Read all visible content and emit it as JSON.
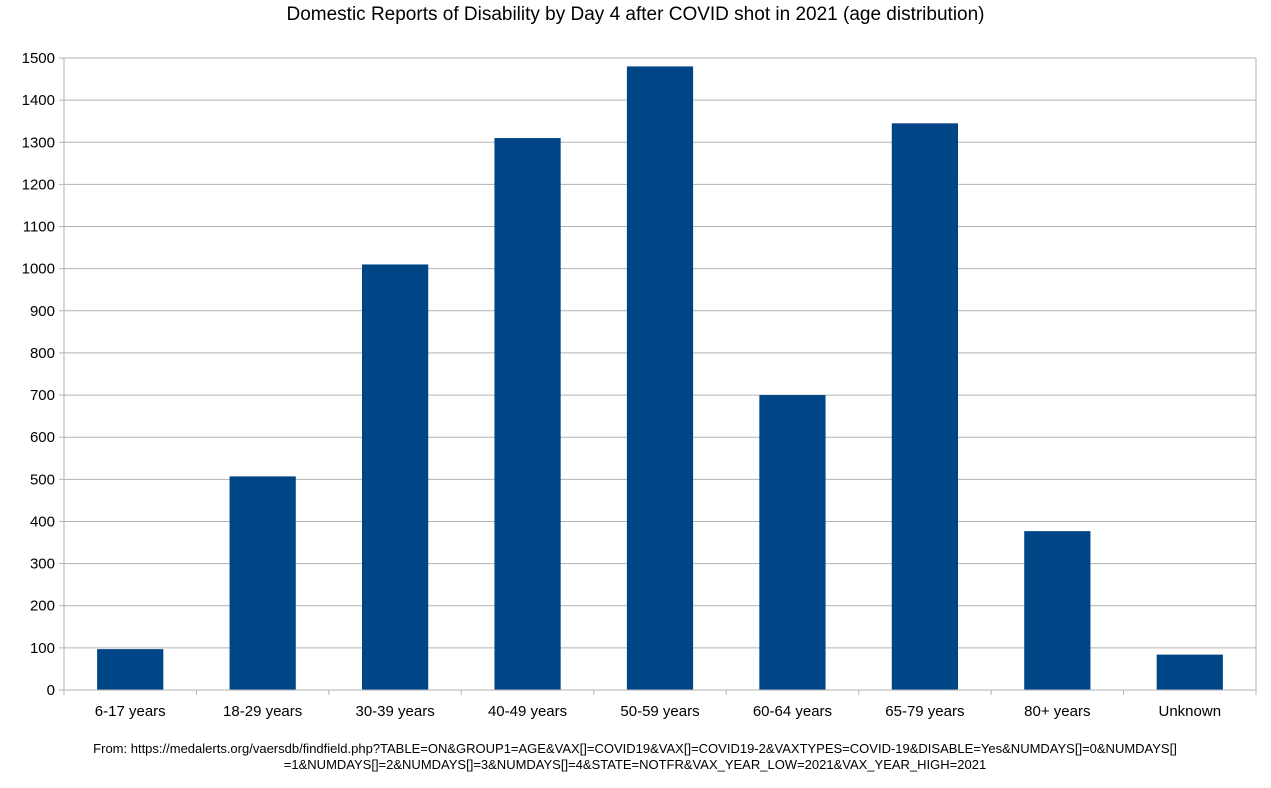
{
  "chart_data": {
    "type": "bar",
    "title": "Domestic Reports of Disability by Day 4 after COVID shot in 2021 (age distribution)",
    "xlabel": "",
    "ylabel": "",
    "categories": [
      "6-17 years",
      "18-29 years",
      "30-39 years",
      "40-49 years",
      "50-59 years",
      "60-64 years",
      "65-79 years",
      "80+ years",
      "Unknown"
    ],
    "values": [
      97,
      507,
      1010,
      1310,
      1480,
      700,
      1345,
      377,
      84
    ],
    "ylim": [
      0,
      1500
    ],
    "yticks": [
      0,
      100,
      200,
      300,
      400,
      500,
      600,
      700,
      800,
      900,
      1000,
      1100,
      1200,
      1300,
      1400,
      1500
    ],
    "grid": true,
    "legend": "none",
    "bar_color": "#004586",
    "grid_color": "#b3b3b3"
  },
  "source_note": "From: https://medalerts.org/vaersdb/findfield.php?TABLE=ON&GROUP1=AGE&VAX[]=COVID19&VAX[]=COVID19-2&VAXTYPES=COVID-19&DISABLE=Yes&NUMDAYS[]=0&NUMDAYS[]=1&NUMDAYS[]=2&NUMDAYS[]=3&NUMDAYS[]=4&STATE=NOTFR&VAX_YEAR_LOW=2021&VAX_YEAR_HIGH=2021"
}
